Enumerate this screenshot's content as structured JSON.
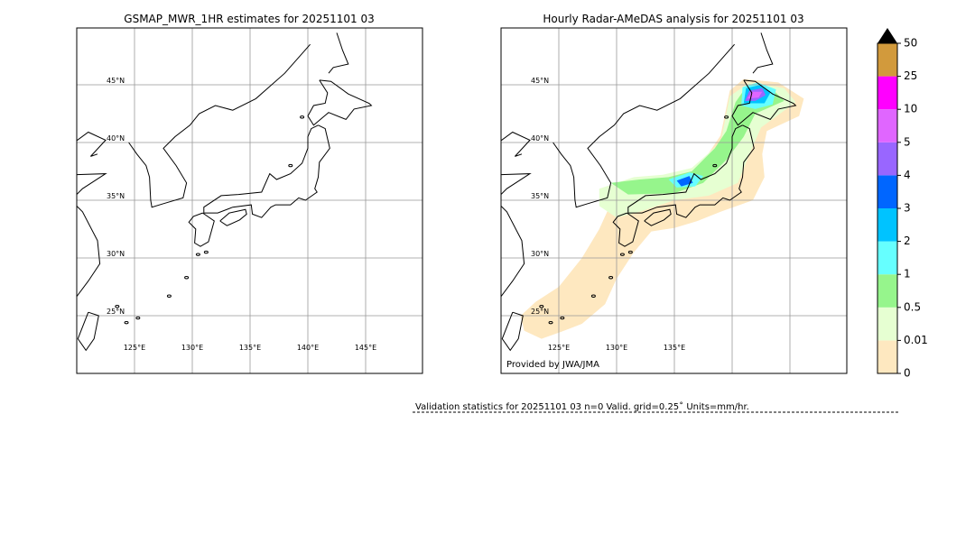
{
  "panels": [
    {
      "title": "GSMAP_MWR_1HR estimates for 20251101 03",
      "lat_labels": [
        "45°N",
        "40°N",
        "35°N",
        "30°N",
        "25°N"
      ],
      "lon_labels": [
        "125°E",
        "130°E",
        "135°E",
        "140°E",
        "145°E"
      ]
    },
    {
      "title": "Hourly Radar-AMeDAS analysis for 20251101 03",
      "lat_labels": [
        "45°N",
        "40°N",
        "35°N",
        "30°N",
        "25°N"
      ],
      "lon_labels": [
        "125°E",
        "130°E",
        "135°E"
      ],
      "credit": "Provided by JWA/JMA"
    }
  ],
  "colorbar": {
    "labels": [
      "0",
      "0.01",
      "0.5",
      "1",
      "2",
      "3",
      "4",
      "5",
      "10",
      "25",
      "50"
    ],
    "colors": [
      "#fee8c0",
      "#e6ffd2",
      "#96f58c",
      "#66ffff",
      "#00c3ff",
      "#0066ff",
      "#9966ff",
      "#e066ff",
      "#ff00ff",
      "#d29a3c"
    ]
  },
  "footer": {
    "validation": "Validation statistics for 20251101 03  n=0 Valid. grid=0.25˚ Units=mm/hr."
  }
}
